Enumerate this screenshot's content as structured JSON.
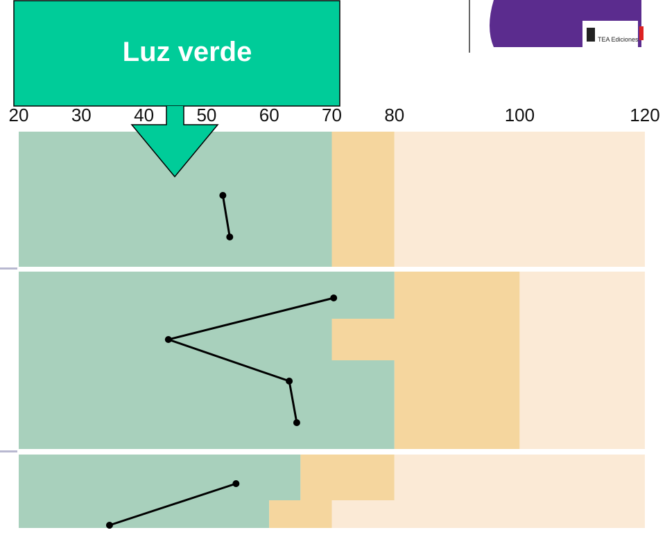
{
  "chart_data": {
    "type": "line",
    "callout": "Luz verde",
    "logo_text": "TEA Ediciones",
    "xlim": [
      20,
      120
    ],
    "xticks": [
      20,
      30,
      40,
      50,
      60,
      70,
      80,
      100,
      120
    ],
    "colors": {
      "green": "#a8d0bc",
      "amber": "#f5d69e",
      "light": "#fbead6",
      "line": "#000000"
    },
    "panels": [
      {
        "bands": [
          [
            70,
            80
          ]
        ],
        "values": [
          52.6,
          53.7
        ]
      },
      {
        "bands": [
          [
            80,
            100
          ],
          [
            70,
            100
          ],
          [
            80,
            100
          ]
        ],
        "values": [
          70.3,
          43.9,
          63.2,
          64.4
        ]
      },
      {
        "bands": [
          [
            65,
            80
          ],
          [
            60,
            70
          ]
        ],
        "values": [
          54.7,
          34.5
        ]
      }
    ]
  }
}
